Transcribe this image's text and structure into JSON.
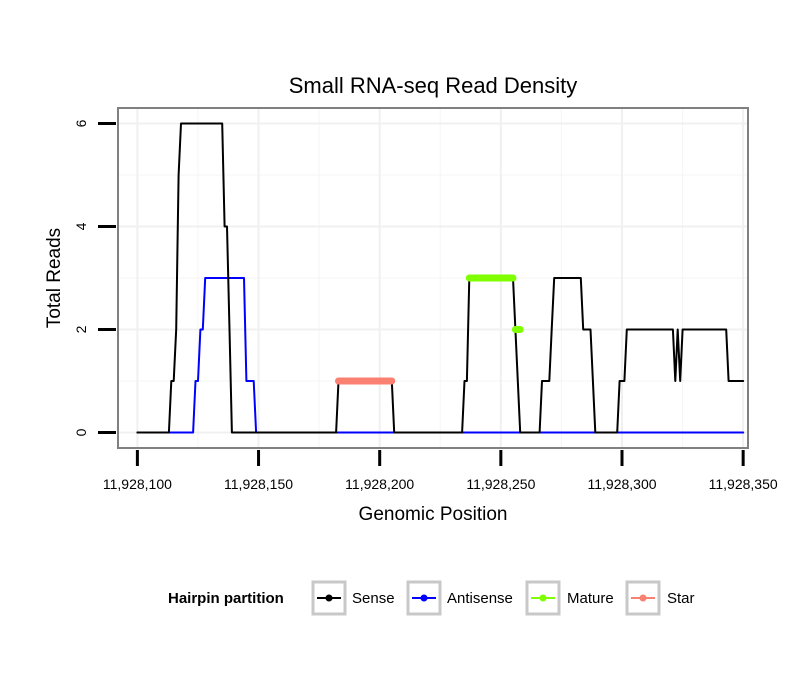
{
  "chart_data": {
    "type": "line",
    "title": "Small RNA-seq Read Density",
    "xlabel": "Genomic Position",
    "ylabel": "Total Reads",
    "xlim": [
      11928092,
      11928352
    ],
    "ylim": [
      -0.3,
      6.3
    ],
    "x_ticks": [
      11928100,
      11928150,
      11928200,
      11928250,
      11928300,
      11928350
    ],
    "x_tick_labels": [
      "11,928,100",
      "11,928,150",
      "11,928,200",
      "11,928,250",
      "11,928,300",
      "11,928,350"
    ],
    "y_ticks": [
      0,
      2,
      4,
      6
    ],
    "y_tick_labels": [
      "0",
      "2",
      "4",
      "6"
    ],
    "legend": {
      "title": "Hairpin partition",
      "position": "bottom",
      "entries": [
        "Sense",
        "Antisense",
        "Mature",
        "Star"
      ]
    },
    "series": [
      {
        "name": "Sense",
        "color": "#000000",
        "x": [
          11928100,
          11928113,
          11928114,
          11928115,
          11928116,
          11928117,
          11928118,
          11928119,
          11928135,
          11928136,
          11928137,
          11928138,
          11928139,
          11928140,
          11928182,
          11928183,
          11928205,
          11928206,
          11928234,
          11928235,
          11928236,
          11928237,
          11928255,
          11928256,
          11928257,
          11928258,
          11928266,
          11928267,
          11928268,
          11928270,
          11928271,
          11928272,
          11928273,
          11928274,
          11928283,
          11928284,
          11928285,
          11928287,
          11928288,
          11928289,
          11928290,
          11928291,
          11928292,
          11928293,
          11928294,
          11928295,
          11928296,
          11928297,
          11928298,
          11928299,
          11928300,
          11928301,
          11928302,
          11928303,
          11928304,
          11928305,
          11928306,
          11928307,
          11928321,
          11928322,
          11928323,
          11928324,
          11928325,
          11928326,
          11928340,
          11928341,
          11928342,
          11928343,
          11928344,
          11928345,
          11928346,
          11928347,
          11928348,
          11928349,
          11928350
        ],
        "values": [
          0,
          0,
          1,
          1,
          2,
          5,
          6,
          6,
          6,
          4,
          4,
          2,
          0,
          0,
          0,
          1,
          1,
          0,
          0,
          1,
          1,
          3,
          3,
          2,
          1,
          0,
          0,
          1,
          1,
          1,
          2,
          3,
          3,
          3,
          3,
          2,
          2,
          2,
          1,
          0,
          0,
          0,
          0,
          0,
          0,
          0,
          0,
          0,
          0,
          1,
          1,
          1,
          2,
          2,
          2,
          2,
          2,
          2,
          2,
          1,
          2,
          1,
          2,
          2,
          2,
          2,
          2,
          2,
          1,
          1,
          1,
          1,
          1,
          1,
          1
        ]
      },
      {
        "name": "Antisense",
        "color": "#0000ff",
        "x": [
          11928100,
          11928123,
          11928124,
          11928125,
          11928126,
          11928127,
          11928128,
          11928129,
          11928130,
          11928144,
          11928145,
          11928146,
          11928147,
          11928148,
          11928149,
          11928150,
          11928151,
          11928152,
          11928153,
          11928350
        ],
        "values": [
          0,
          0,
          1,
          1,
          2,
          2,
          3,
          3,
          3,
          3,
          1,
          1,
          1,
          1,
          0,
          0,
          0,
          0,
          0,
          0
        ]
      },
      {
        "name": "Mature",
        "color": "#7fff00",
        "segments": [
          {
            "x": [
              11928237,
              11928255
            ],
            "values": [
              3,
              3
            ]
          },
          {
            "x": [
              11928256,
              11928258
            ],
            "values": [
              2,
              2
            ]
          }
        ]
      },
      {
        "name": "Star",
        "color": "#fa8072",
        "segments": [
          {
            "x": [
              11928183,
              11928205
            ],
            "values": [
              1,
              1
            ]
          }
        ]
      }
    ]
  }
}
